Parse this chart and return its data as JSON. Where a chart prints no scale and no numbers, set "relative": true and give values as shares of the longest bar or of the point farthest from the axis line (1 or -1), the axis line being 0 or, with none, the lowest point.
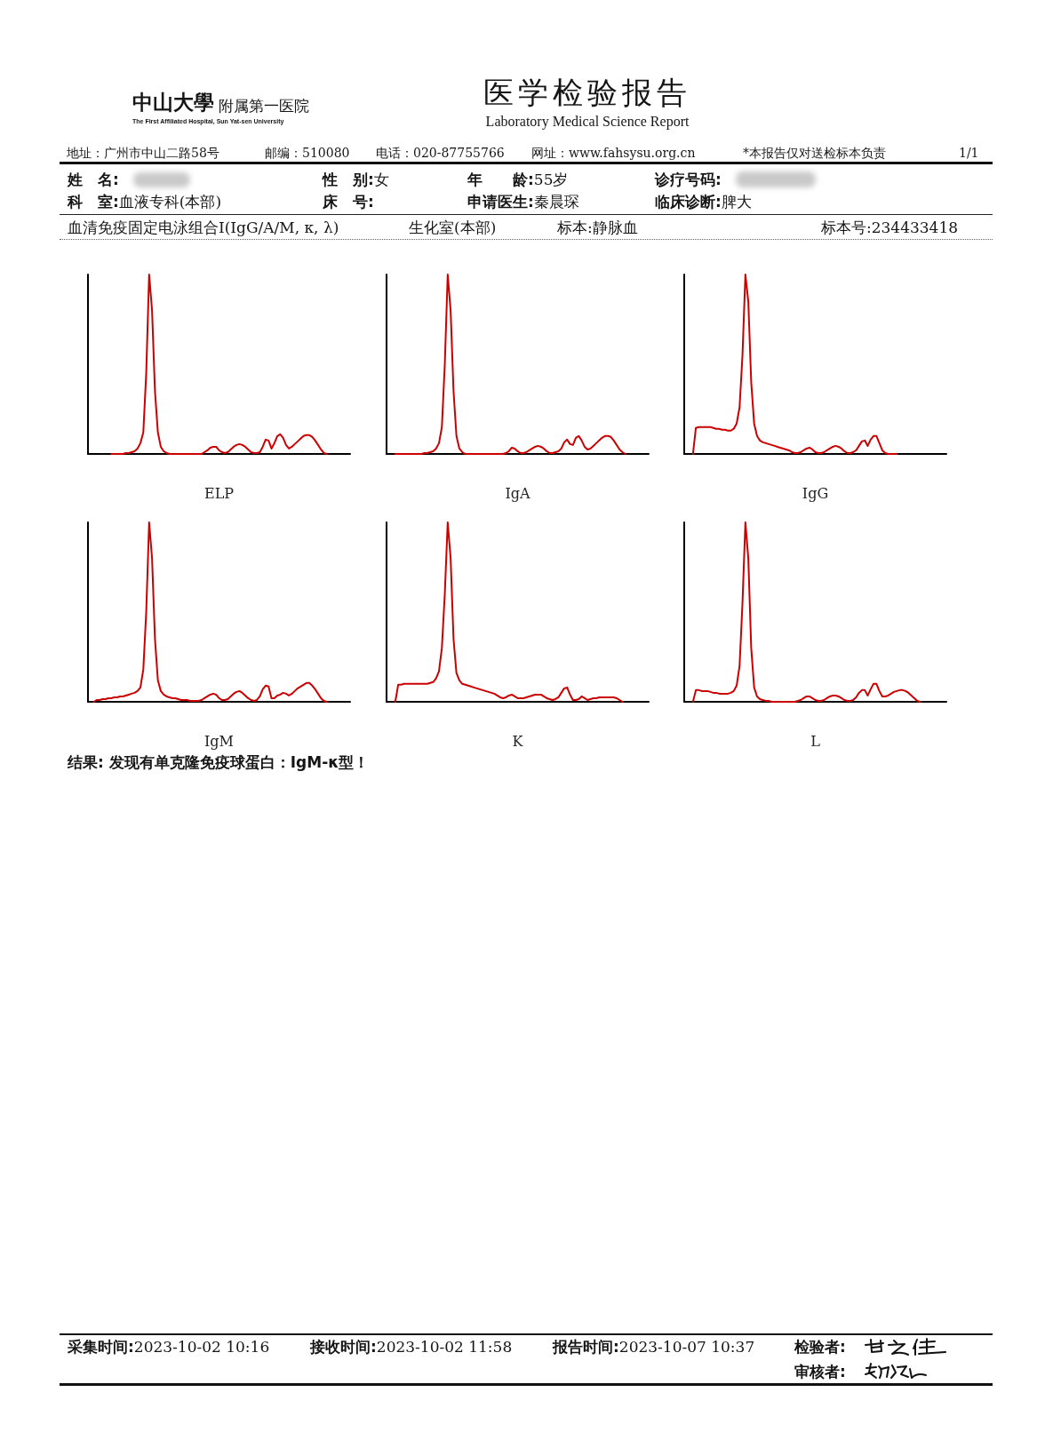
{
  "chart_data": [
    {
      "type": "other",
      "title": "医学检验报告",
      "subtitle": "Laboratory Medical Science Report",
      "annotations": [
        "中山大學",
        "附属第一医院",
        "The First Affiliated Hospital, Sun Yat-sen University",
        "地址：广州市中山二路58号",
        "邮编：510080",
        "电话：020-87755766",
        "网址：www.fahsysu.org.cn",
        "*本报告仅对送检标本负责",
        "1/1",
        "姓　名:",
        "性　别:女",
        "年　　龄:55岁",
        "诊疗号码:",
        "科　室:血液专科(本部)",
        "床　号:",
        "申请医生:秦晨琛",
        "临床诊断:脾大",
        "血清免疫固定电泳组合I(IgG/A/M, κ, λ)",
        "生化室(本部)",
        "标本:静脉血",
        "标本号:234433418"
      ]
    },
    {
      "type": "line",
      "relative": true,
      "xlabel": "ELP",
      "categories": [
        null,
        null,
        null,
        null,
        null,
        null,
        null,
        null,
        null,
        null,
        null,
        null,
        null,
        null,
        null,
        null,
        null,
        null,
        null,
        null,
        null,
        null,
        null,
        null,
        null,
        null,
        null,
        null,
        null,
        null,
        null,
        null,
        null,
        null,
        null,
        null,
        null,
        null,
        null,
        null,
        null,
        null,
        null,
        null,
        null,
        null,
        null,
        null,
        null,
        null,
        null,
        null,
        null,
        null,
        null,
        null,
        null,
        null,
        null,
        null,
        null,
        null,
        null,
        null,
        null,
        null,
        null,
        null,
        null,
        null,
        null,
        null,
        null,
        null,
        null,
        null,
        null,
        null,
        null,
        null,
        null,
        null,
        null,
        null,
        null,
        null,
        null,
        null,
        null,
        null,
        null
      ],
      "series": [
        {
          "color": "#cc0000",
          "values": [
            null,
            null,
            null,
            null,
            null,
            null,
            null,
            null,
            0,
            0,
            0,
            0,
            0,
            0.005,
            0.005,
            0.01,
            0.015,
            0.03,
            0.06,
            0.12,
            0.45,
            1,
            0.8,
            0.35,
            0.12,
            0.04,
            0.015,
            0.005,
            0,
            0,
            0,
            0,
            0,
            0,
            0,
            0,
            0,
            0,
            0,
            0,
            0.01,
            0.02,
            0.035,
            0.04,
            0.04,
            0.02,
            0.01,
            0.005,
            0.01,
            0.025,
            0.04,
            0.05,
            0.055,
            0.05,
            0.04,
            0.025,
            0.01,
            0.005,
            0.005,
            0.01,
            0.04,
            0.08,
            0.075,
            0.03,
            0.06,
            0.1,
            0.11,
            0.09,
            0.05,
            0.03,
            0.04,
            0.055,
            0.07,
            0.085,
            0.1,
            0.105,
            0.105,
            0.095,
            0.075,
            0.05,
            0.025,
            0.005,
            0,
            null,
            null,
            null,
            null,
            null,
            null,
            null,
            null
          ]
        }
      ]
    },
    {
      "type": "line",
      "relative": true,
      "xlabel": "IgA",
      "categories": [
        null,
        null,
        null,
        null,
        null,
        null,
        null,
        null,
        null,
        null,
        null,
        null,
        null,
        null,
        null,
        null,
        null,
        null,
        null,
        null,
        null,
        null,
        null,
        null,
        null,
        null,
        null,
        null,
        null,
        null,
        null,
        null,
        null,
        null,
        null,
        null,
        null,
        null,
        null,
        null,
        null,
        null,
        null,
        null,
        null,
        null,
        null,
        null,
        null,
        null,
        null,
        null,
        null,
        null,
        null,
        null,
        null,
        null,
        null,
        null,
        null,
        null,
        null,
        null,
        null,
        null,
        null,
        null,
        null,
        null,
        null,
        null,
        null,
        null,
        null,
        null,
        null,
        null,
        null,
        null,
        null,
        null,
        null,
        null,
        null,
        null,
        null,
        null,
        null,
        null,
        null
      ],
      "series": [
        {
          "color": "#cc0000",
          "values": [
            null,
            null,
            null,
            0,
            0,
            0,
            0,
            0,
            0,
            0,
            0,
            0,
            0,
            0.005,
            0.005,
            0.01,
            0.015,
            0.03,
            0.06,
            0.15,
            0.5,
            1,
            0.8,
            0.35,
            0.1,
            0.03,
            0.01,
            0,
            0,
            0,
            0,
            0,
            0,
            0,
            0,
            0,
            0,
            0,
            0,
            0,
            0,
            0.005,
            0.015,
            0.035,
            0.03,
            0.015,
            0.005,
            0.005,
            0.01,
            0.02,
            0.03,
            0.04,
            0.045,
            0.04,
            0.03,
            0.015,
            0.005,
            0.005,
            0.01,
            0.015,
            0.03,
            0.065,
            0.08,
            0.055,
            0.05,
            0.09,
            0.1,
            0.075,
            0.04,
            0.025,
            0.03,
            0.045,
            0.06,
            0.075,
            0.09,
            0.1,
            0.1,
            0.095,
            0.075,
            0.05,
            0.025,
            0.01,
            0,
            null,
            null,
            null,
            null,
            null,
            null,
            null,
            null
          ]
        }
      ]
    },
    {
      "type": "line",
      "relative": true,
      "xlabel": "IgG",
      "categories": [
        null,
        null,
        null,
        null,
        null,
        null,
        null,
        null,
        null,
        null,
        null,
        null,
        null,
        null,
        null,
        null,
        null,
        null,
        null,
        null,
        null,
        null,
        null,
        null,
        null,
        null,
        null,
        null,
        null,
        null,
        null,
        null,
        null,
        null,
        null,
        null,
        null,
        null,
        null,
        null,
        null,
        null,
        null,
        null,
        null,
        null,
        null,
        null,
        null,
        null,
        null,
        null,
        null,
        null,
        null,
        null,
        null,
        null,
        null,
        null,
        null,
        null,
        null,
        null,
        null,
        null,
        null,
        null,
        null,
        null,
        null,
        null,
        null,
        null,
        null,
        null,
        null,
        null,
        null,
        null,
        null,
        null,
        null,
        null,
        null,
        null,
        null,
        null,
        null,
        null,
        null
      ],
      "series": [
        {
          "color": "#cc0000",
          "values": [
            null,
            null,
            null,
            0,
            0.145,
            0.15,
            0.15,
            0.15,
            0.15,
            0.15,
            0.145,
            0.14,
            0.14,
            0.135,
            0.135,
            0.13,
            0.13,
            0.14,
            0.17,
            0.26,
            0.55,
            1,
            0.85,
            0.4,
            0.17,
            0.1,
            0.075,
            0.065,
            0.06,
            0.055,
            0.05,
            0.045,
            0.04,
            0.035,
            0.03,
            0.025,
            0.02,
            0.01,
            0.005,
            0.005,
            0.01,
            0.02,
            0.03,
            0.035,
            0.025,
            0.01,
            0.005,
            0.005,
            0.01,
            0.02,
            0.03,
            0.04,
            0.045,
            0.04,
            0.03,
            0.015,
            0.005,
            0.005,
            0.01,
            0.02,
            0.045,
            0.07,
            0.075,
            0.045,
            0.08,
            0.1,
            0.1,
            0.06,
            0.02,
            0.005,
            0,
            0,
            0,
            0,
            null,
            null,
            null,
            null,
            null,
            null,
            null,
            null,
            null,
            null,
            null,
            null,
            null,
            null,
            null,
            null,
            null
          ]
        }
      ]
    },
    {
      "type": "line",
      "relative": true,
      "xlabel": "IgM",
      "categories": [
        null,
        null,
        null,
        null,
        null,
        null,
        null,
        null,
        null,
        null,
        null,
        null,
        null,
        null,
        null,
        null,
        null,
        null,
        null,
        null,
        null,
        null,
        null,
        null,
        null,
        null,
        null,
        null,
        null,
        null,
        null,
        null,
        null,
        null,
        null,
        null,
        null,
        null,
        null,
        null,
        null,
        null,
        null,
        null,
        null,
        null,
        null,
        null,
        null,
        null,
        null,
        null,
        null,
        null,
        null,
        null,
        null,
        null,
        null,
        null,
        null,
        null,
        null,
        null,
        null,
        null,
        null,
        null,
        null,
        null,
        null,
        null,
        null,
        null,
        null,
        null,
        null,
        null,
        null,
        null,
        null,
        null,
        null,
        null,
        null,
        null,
        null,
        null,
        null,
        null,
        null
      ],
      "series": [
        {
          "color": "#cc0000",
          "values": [
            null,
            null,
            0,
            0.01,
            0.01,
            0.015,
            0.015,
            0.02,
            0.02,
            0.025,
            0.025,
            0.03,
            0.03,
            0.035,
            0.04,
            0.045,
            0.05,
            0.06,
            0.08,
            0.18,
            0.5,
            1,
            0.8,
            0.35,
            0.12,
            0.06,
            0.04,
            0.03,
            0.025,
            0.02,
            0.02,
            0.015,
            0.01,
            0.01,
            0.01,
            0.005,
            0.005,
            0.005,
            0.005,
            0.01,
            0.02,
            0.03,
            0.04,
            0.045,
            0.04,
            0.02,
            0.01,
            0.01,
            0.015,
            0.03,
            0.045,
            0.055,
            0.06,
            0.05,
            0.035,
            0.02,
            0.01,
            0.005,
            0.01,
            0.03,
            0.07,
            0.09,
            0.085,
            0.02,
            0.02,
            0.035,
            0.04,
            0.05,
            0.045,
            0.035,
            0.045,
            0.06,
            0.075,
            0.085,
            0.095,
            0.105,
            0.105,
            0.09,
            0.07,
            0.045,
            0.02,
            0.005,
            0,
            null,
            null,
            null,
            null,
            null,
            null,
            null,
            null
          ]
        }
      ]
    },
    {
      "type": "line",
      "relative": true,
      "xlabel": "K",
      "categories": [
        null,
        null,
        null,
        null,
        null,
        null,
        null,
        null,
        null,
        null,
        null,
        null,
        null,
        null,
        null,
        null,
        null,
        null,
        null,
        null,
        null,
        null,
        null,
        null,
        null,
        null,
        null,
        null,
        null,
        null,
        null,
        null,
        null,
        null,
        null,
        null,
        null,
        null,
        null,
        null,
        null,
        null,
        null,
        null,
        null,
        null,
        null,
        null,
        null,
        null,
        null,
        null,
        null,
        null,
        null,
        null,
        null,
        null,
        null,
        null,
        null,
        null,
        null,
        null,
        null,
        null,
        null,
        null,
        null,
        null,
        null,
        null,
        null,
        null,
        null,
        null,
        null,
        null,
        null,
        null,
        null,
        null,
        null,
        null,
        null,
        null,
        null,
        null,
        null,
        null,
        null
      ],
      "series": [
        {
          "color": "#cc0000",
          "values": [
            null,
            null,
            null,
            0,
            0.095,
            0.095,
            0.1,
            0.1,
            0.1,
            0.1,
            0.1,
            0.1,
            0.1,
            0.1,
            0.1,
            0.105,
            0.11,
            0.13,
            0.17,
            0.3,
            0.6,
            1,
            0.8,
            0.35,
            0.16,
            0.12,
            0.1,
            0.095,
            0.09,
            0.085,
            0.08,
            0.075,
            0.07,
            0.065,
            0.06,
            0.055,
            0.05,
            0.045,
            0.035,
            0.025,
            0.02,
            0.025,
            0.035,
            0.04,
            0.03,
            0.02,
            0.02,
            0.02,
            0.025,
            0.03,
            0.035,
            0.04,
            0.04,
            0.04,
            0.03,
            0.02,
            0.015,
            0.01,
            0.015,
            0.025,
            0.05,
            0.075,
            0.08,
            0.04,
            0.01,
            0.01,
            0.015,
            0.03,
            0.02,
            0.01,
            0.015,
            0.02,
            0.02,
            0.025,
            0.025,
            0.025,
            0.025,
            0.025,
            0.025,
            0.02,
            0.01,
            0,
            null,
            null,
            null,
            null,
            null,
            null,
            null,
            null,
            null
          ]
        }
      ]
    },
    {
      "type": "line",
      "relative": true,
      "xlabel": "L",
      "categories": [
        null,
        null,
        null,
        null,
        null,
        null,
        null,
        null,
        null,
        null,
        null,
        null,
        null,
        null,
        null,
        null,
        null,
        null,
        null,
        null,
        null,
        null,
        null,
        null,
        null,
        null,
        null,
        null,
        null,
        null,
        null,
        null,
        null,
        null,
        null,
        null,
        null,
        null,
        null,
        null,
        null,
        null,
        null,
        null,
        null,
        null,
        null,
        null,
        null,
        null,
        null,
        null,
        null,
        null,
        null,
        null,
        null,
        null,
        null,
        null,
        null,
        null,
        null,
        null,
        null,
        null,
        null,
        null,
        null,
        null,
        null,
        null,
        null,
        null,
        null,
        null,
        null,
        null,
        null,
        null,
        null,
        null,
        null,
        null,
        null,
        null,
        null,
        null,
        null,
        null,
        null
      ],
      "series": [
        {
          "color": "#cc0000",
          "values": [
            null,
            null,
            null,
            0,
            0.065,
            0.065,
            0.06,
            0.06,
            0.06,
            0.055,
            0.05,
            0.05,
            0.045,
            0.045,
            0.045,
            0.045,
            0.05,
            0.06,
            0.09,
            0.2,
            0.55,
            1,
            0.8,
            0.3,
            0.08,
            0.03,
            0.015,
            0.01,
            0.005,
            0.005,
            0,
            0,
            0,
            0,
            0,
            0,
            0,
            0,
            0,
            0.005,
            0.01,
            0.02,
            0.03,
            0.03,
            0.02,
            0.01,
            0.005,
            0.005,
            0.01,
            0.02,
            0.03,
            0.035,
            0.035,
            0.03,
            0.02,
            0.01,
            0.005,
            0.005,
            0.01,
            0.025,
            0.05,
            0.065,
            0.065,
            0.035,
            0.07,
            0.1,
            0.1,
            0.06,
            0.03,
            0.03,
            0.035,
            0.045,
            0.055,
            0.06,
            0.065,
            0.065,
            0.06,
            0.05,
            0.035,
            0.02,
            0.005,
            0,
            null,
            null,
            null,
            null,
            null,
            null,
            null,
            null,
            null
          ]
        }
      ]
    },
    {
      "type": "other",
      "annotations": [
        "结果: 发现有单克隆免疫球蛋白：IgM-κ型！",
        "采集时间:2023-10-02 10:16",
        "接收时间:2023-10-02 11:58",
        "报告时间:2023-10-07 10:37",
        "检验者:",
        "审核者:"
      ]
    }
  ]
}
